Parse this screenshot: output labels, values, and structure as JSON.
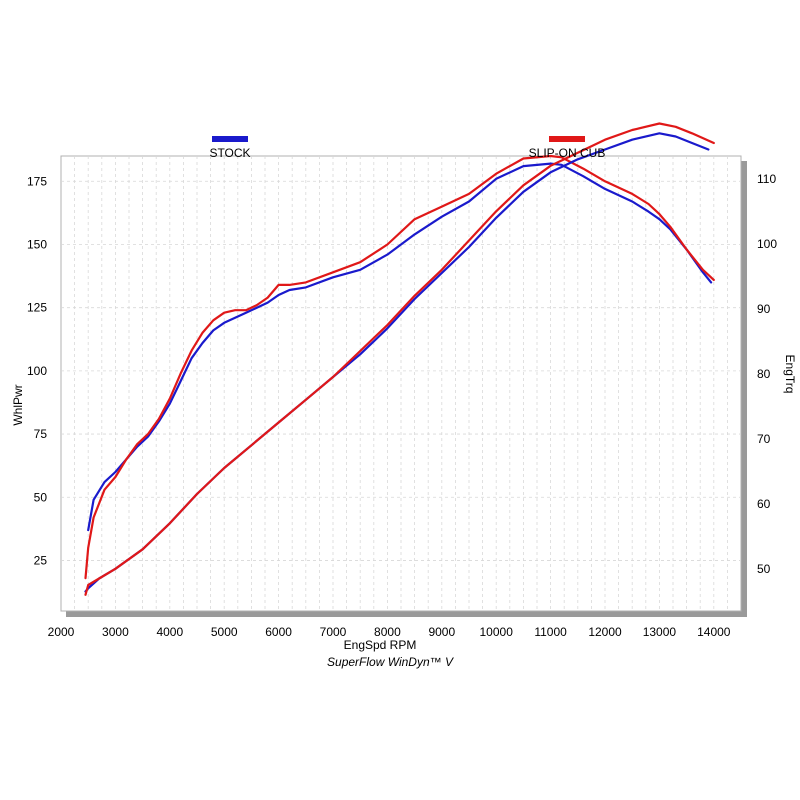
{
  "chart_data": {
    "type": "line",
    "footer": "SuperFlow WinDyn™ V",
    "xlabel": "EngSpd  RPM",
    "ylabel_left": "WhlPwr",
    "ylabel_right": "EngTrq",
    "x_ticks": [
      2000,
      3000,
      4000,
      5000,
      6000,
      7000,
      8000,
      9000,
      10000,
      11000,
      12000,
      13000,
      14000
    ],
    "y_left_ticks": [
      25,
      50,
      75,
      100,
      125,
      150,
      175
    ],
    "y_right_ticks": [
      50,
      60,
      70,
      80,
      90,
      100,
      110
    ],
    "xlim": [
      2000,
      14500
    ],
    "ylim_left": [
      5,
      185
    ],
    "ylim_right": [
      43.5,
      113.5
    ],
    "grid": true,
    "legend_position": "top",
    "series": [
      {
        "name": "STOCK",
        "color": "#1a1acc",
        "axis": "left",
        "metric": "WhlPwr",
        "x": [
          2500,
          2600,
          2800,
          3000,
          3200,
          3400,
          3600,
          3800,
          4000,
          4200,
          4400,
          4600,
          4800,
          5000,
          5200,
          5400,
          5600,
          5800,
          6000,
          6200,
          6500,
          7000,
          7500,
          8000,
          8500,
          9000,
          9500,
          10000,
          10500,
          11000,
          11200,
          11600,
          12000,
          12500,
          12800,
          13000,
          13200,
          13500,
          13800,
          13950
        ],
        "y": [
          37,
          49,
          56,
          60,
          65,
          70,
          74,
          80,
          87,
          96,
          105,
          111,
          116,
          119,
          121,
          123,
          125,
          127,
          130,
          132,
          133,
          137,
          140,
          146,
          154,
          161,
          167,
          176,
          181,
          182,
          181.5,
          177,
          172,
          167,
          163,
          160,
          156,
          148,
          139,
          135
        ]
      },
      {
        "name": "SLIP-ON CUB",
        "color": "#e01818",
        "axis": "left",
        "metric": "WhlPwr",
        "x": [
          2450,
          2500,
          2600,
          2800,
          3000,
          3200,
          3400,
          3600,
          3800,
          4000,
          4200,
          4400,
          4600,
          4800,
          5000,
          5200,
          5400,
          5600,
          5800,
          6000,
          6200,
          6500,
          7000,
          7500,
          8000,
          8500,
          9000,
          9500,
          10000,
          10500,
          11000,
          11200,
          11600,
          12000,
          12500,
          12800,
          13000,
          13200,
          13500,
          13800,
          14000
        ],
        "y": [
          18,
          30,
          42,
          53,
          58,
          65,
          71,
          75,
          81,
          89,
          99,
          108,
          115,
          120,
          123,
          124,
          124,
          126,
          129,
          134,
          134,
          135,
          139,
          143,
          150,
          160,
          165,
          170,
          178,
          184,
          185,
          184.5,
          180,
          175,
          170,
          166,
          162,
          157,
          148,
          140,
          136
        ]
      },
      {
        "name": "STOCK",
        "color": "#1a1acc",
        "axis": "right",
        "metric": "EngTrq",
        "x": [
          2450,
          2500,
          2700,
          3000,
          3500,
          4000,
          4500,
          5000,
          5500,
          6000,
          6500,
          7000,
          7500,
          8000,
          8500,
          9000,
          9500,
          10000,
          10500,
          11000,
          11500,
          12000,
          12500,
          13000,
          13300,
          13600,
          13900
        ],
        "y": [
          46.5,
          47,
          48.5,
          50,
          53,
          57,
          61.5,
          65.5,
          69,
          72.5,
          76,
          79.5,
          83,
          87,
          91.5,
          95.5,
          99.5,
          104,
          108,
          111,
          113,
          114.5,
          116,
          117,
          116.5,
          115.5,
          114.5
        ]
      },
      {
        "name": "SLIP-ON CUB",
        "color": "#e01818",
        "axis": "right",
        "metric": "EngTrq",
        "x": [
          2450,
          2500,
          2700,
          3000,
          3500,
          4000,
          4500,
          5000,
          5500,
          6000,
          6500,
          7000,
          7500,
          8000,
          8500,
          9000,
          9500,
          10000,
          10500,
          11000,
          11500,
          12000,
          12500,
          13000,
          13300,
          13600,
          14000
        ],
        "y": [
          46,
          47.5,
          48.5,
          50,
          53,
          57,
          61.5,
          65.5,
          69,
          72.5,
          76,
          79.5,
          83.5,
          87.5,
          92,
          96,
          100.5,
          105,
          109,
          112,
          114,
          116,
          117.5,
          118.5,
          118,
          117,
          115.5
        ]
      }
    ]
  }
}
